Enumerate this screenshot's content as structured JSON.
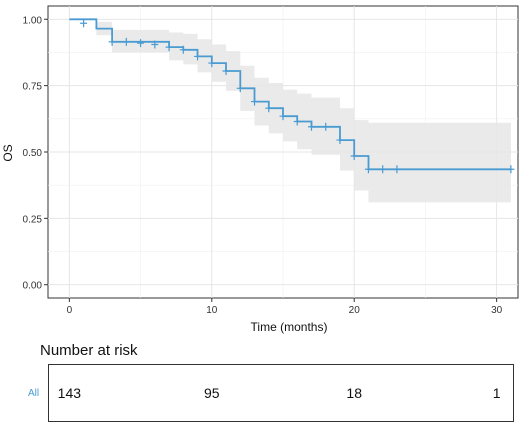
{
  "chart_data": {
    "type": "line",
    "subtype": "kaplan-meier",
    "title": "",
    "xlabel": "Time (months)",
    "ylabel": "OS",
    "xlim": [
      -1.5,
      31.5
    ],
    "ylim": [
      -0.05,
      1.05
    ],
    "x_ticks": [
      0,
      10,
      20,
      30
    ],
    "x_tick_labels": [
      "0",
      "10",
      "20",
      "30"
    ],
    "y_ticks": [
      0.0,
      0.25,
      0.5,
      0.75,
      1.0
    ],
    "y_tick_labels": [
      "0.00",
      "0.25",
      "0.50",
      "0.75",
      "1.00"
    ],
    "grid": true,
    "line_color": "#4a9bd1",
    "ci_color": "#e6e6e6",
    "series": [
      {
        "steps": [
          {
            "x": 0,
            "y": 1.0
          },
          {
            "x": 1.9,
            "y": 0.965
          },
          {
            "x": 3.0,
            "y": 0.915
          },
          {
            "x": 7.0,
            "y": 0.895
          },
          {
            "x": 8.0,
            "y": 0.885
          },
          {
            "x": 9.0,
            "y": 0.86
          },
          {
            "x": 10.0,
            "y": 0.835
          },
          {
            "x": 11.0,
            "y": 0.805
          },
          {
            "x": 12.0,
            "y": 0.74
          },
          {
            "x": 13.0,
            "y": 0.69
          },
          {
            "x": 14.0,
            "y": 0.665
          },
          {
            "x": 15.0,
            "y": 0.635
          },
          {
            "x": 16.0,
            "y": 0.615
          },
          {
            "x": 17.0,
            "y": 0.595
          },
          {
            "x": 19.0,
            "y": 0.545
          },
          {
            "x": 20.0,
            "y": 0.485
          },
          {
            "x": 21.0,
            "y": 0.435
          }
        ],
        "end_x": 31,
        "ci_upper": [
          {
            "x": 0,
            "y": 1.0
          },
          {
            "x": 1.9,
            "y": 0.99
          },
          {
            "x": 3.0,
            "y": 0.96
          },
          {
            "x": 7.0,
            "y": 0.95
          },
          {
            "x": 8.0,
            "y": 0.945
          },
          {
            "x": 9.0,
            "y": 0.925
          },
          {
            "x": 10.0,
            "y": 0.905
          },
          {
            "x": 11.0,
            "y": 0.88
          },
          {
            "x": 12.0,
            "y": 0.825
          },
          {
            "x": 13.0,
            "y": 0.78
          },
          {
            "x": 14.0,
            "y": 0.76
          },
          {
            "x": 15.0,
            "y": 0.735
          },
          {
            "x": 16.0,
            "y": 0.72
          },
          {
            "x": 17.0,
            "y": 0.705
          },
          {
            "x": 19.0,
            "y": 0.665
          },
          {
            "x": 20.0,
            "y": 0.62
          },
          {
            "x": 21.0,
            "y": 0.61
          }
        ],
        "ci_lower": [
          {
            "x": 0,
            "y": 1.0
          },
          {
            "x": 1.9,
            "y": 0.94
          },
          {
            "x": 3.0,
            "y": 0.875
          },
          {
            "x": 7.0,
            "y": 0.845
          },
          {
            "x": 8.0,
            "y": 0.83
          },
          {
            "x": 9.0,
            "y": 0.8
          },
          {
            "x": 10.0,
            "y": 0.765
          },
          {
            "x": 11.0,
            "y": 0.73
          },
          {
            "x": 12.0,
            "y": 0.655
          },
          {
            "x": 13.0,
            "y": 0.6
          },
          {
            "x": 14.0,
            "y": 0.57
          },
          {
            "x": 15.0,
            "y": 0.54
          },
          {
            "x": 16.0,
            "y": 0.51
          },
          {
            "x": 17.0,
            "y": 0.49
          },
          {
            "x": 19.0,
            "y": 0.43
          },
          {
            "x": 20.0,
            "y": 0.355
          },
          {
            "x": 21.0,
            "y": 0.31
          }
        ],
        "censored": [
          {
            "x": 1.0,
            "y": 0.985
          },
          {
            "x": 3.0,
            "y": 0.915
          },
          {
            "x": 4.0,
            "y": 0.915
          },
          {
            "x": 5.0,
            "y": 0.91
          },
          {
            "x": 6.0,
            "y": 0.905
          },
          {
            "x": 7.0,
            "y": 0.895
          },
          {
            "x": 8.0,
            "y": 0.885
          },
          {
            "x": 9.0,
            "y": 0.86
          },
          {
            "x": 10.0,
            "y": 0.835
          },
          {
            "x": 11.0,
            "y": 0.805
          },
          {
            "x": 12.0,
            "y": 0.74
          },
          {
            "x": 13.0,
            "y": 0.69
          },
          {
            "x": 14.0,
            "y": 0.665
          },
          {
            "x": 15.0,
            "y": 0.635
          },
          {
            "x": 16.0,
            "y": 0.615
          },
          {
            "x": 17.0,
            "y": 0.595
          },
          {
            "x": 18.0,
            "y": 0.595
          },
          {
            "x": 19.0,
            "y": 0.545
          },
          {
            "x": 20.0,
            "y": 0.485
          },
          {
            "x": 21.0,
            "y": 0.435
          },
          {
            "x": 22.0,
            "y": 0.435
          },
          {
            "x": 23.0,
            "y": 0.435
          },
          {
            "x": 31.0,
            "y": 0.435
          }
        ]
      }
    ]
  },
  "risk_table": {
    "title": "Number at risk",
    "strata_label": "All",
    "counts": [
      {
        "time": 0,
        "n": "143"
      },
      {
        "time": 10,
        "n": "95"
      },
      {
        "time": 20,
        "n": "18"
      },
      {
        "time": 30,
        "n": "1"
      }
    ]
  }
}
